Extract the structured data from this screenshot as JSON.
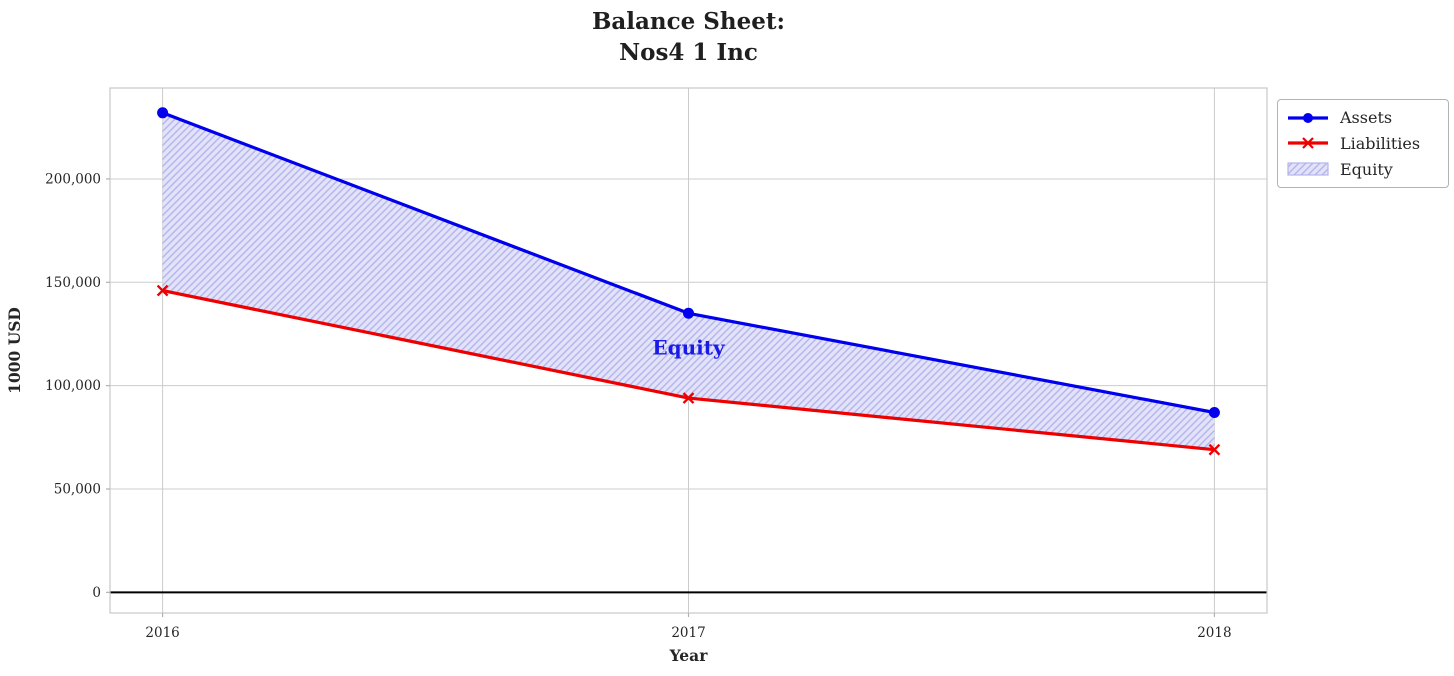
{
  "title": {
    "line1": "Balance Sheet:",
    "line2": "Nos4 1 Inc"
  },
  "chart_data": {
    "type": "line",
    "x": [
      2016,
      2017,
      2018
    ],
    "series": [
      {
        "name": "Assets",
        "values": [
          232000,
          135000,
          87000
        ],
        "color": "#0000ee",
        "marker": "circle"
      },
      {
        "name": "Liabilities",
        "values": [
          146000,
          94000,
          69000
        ],
        "color": "#ee0000",
        "marker": "x"
      }
    ],
    "equity_fill": {
      "name": "Equity",
      "between": [
        "Assets",
        "Liabilities"
      ],
      "values": [
        86000,
        41000,
        18000
      ],
      "fill_color": "#e2e2f8",
      "hatch_color": "#b4b4ef",
      "hatch": "///"
    },
    "annotation": {
      "text": "Equity",
      "x": 2017,
      "y": 115000,
      "color": "#1a1ae6"
    },
    "xlabel": "Year",
    "ylabel": "1000 USD",
    "xticks": [
      2016,
      2017,
      2018
    ],
    "yticks": [
      0,
      50000,
      100000,
      150000,
      200000
    ],
    "ytick_labels": [
      "0",
      "50,000",
      "100,000",
      "150,000",
      "200,000"
    ],
    "xlim": [
      2015.9,
      2018.1
    ],
    "ylim": [
      -10000,
      244000
    ],
    "grid": true,
    "grid_color": "#cccccc",
    "zero_line_color": "#000000",
    "legend": {
      "position": "upper right",
      "entries": [
        "Assets",
        "Liabilities",
        "Equity"
      ]
    }
  }
}
